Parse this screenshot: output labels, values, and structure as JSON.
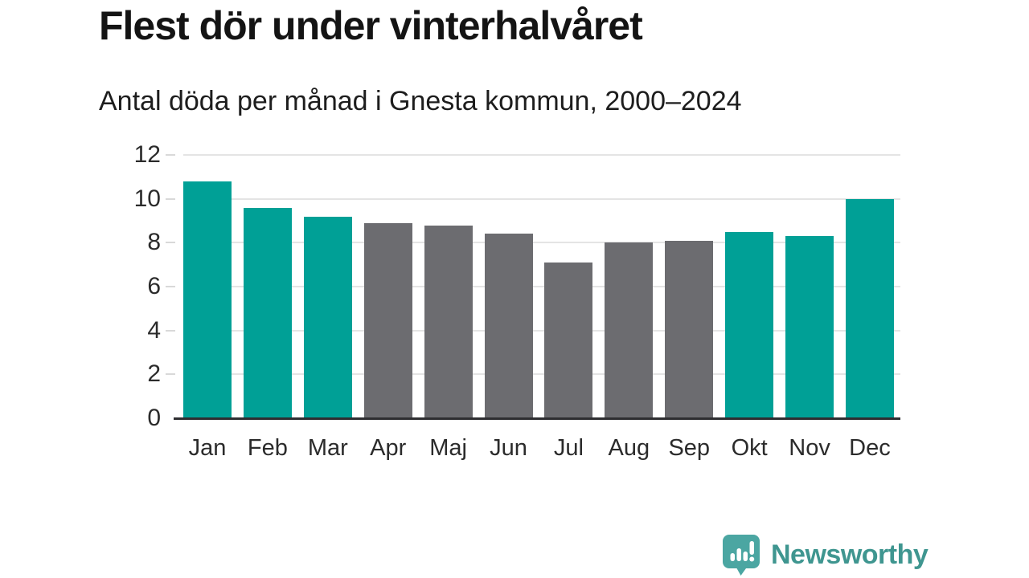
{
  "header": {
    "title": "Flest dör under vinterhalvåret",
    "subtitle": "Antal döda per månad i Gnesta kommun, 2000–2024"
  },
  "chart_data": {
    "type": "bar",
    "title": "Flest dör under vinterhalvåret",
    "subtitle": "Antal döda per månad i Gnesta kommun, 2000–2024",
    "categories": [
      "Jan",
      "Feb",
      "Mar",
      "Apr",
      "Maj",
      "Jun",
      "Jul",
      "Aug",
      "Sep",
      "Okt",
      "Nov",
      "Dec"
    ],
    "values": [
      10.8,
      9.6,
      9.2,
      8.9,
      8.8,
      8.4,
      7.1,
      8.0,
      8.1,
      8.5,
      8.3,
      10.0
    ],
    "bar_groups": [
      "winter",
      "winter",
      "winter",
      "summer",
      "summer",
      "summer",
      "summer",
      "summer",
      "summer",
      "winter",
      "winter",
      "winter"
    ],
    "colors": {
      "winter": "#00A096",
      "summer": "#6C6C70"
    },
    "xlabel": "",
    "ylabel": "",
    "ylim": [
      0,
      12
    ],
    "yticks": [
      0,
      2,
      4,
      6,
      8,
      10,
      12
    ],
    "grid": "horizontal",
    "legend": "none"
  },
  "footer": {
    "brand": "Newsworthy",
    "brand_color": "#3f9690",
    "icon_color": "#4BA6A2"
  }
}
